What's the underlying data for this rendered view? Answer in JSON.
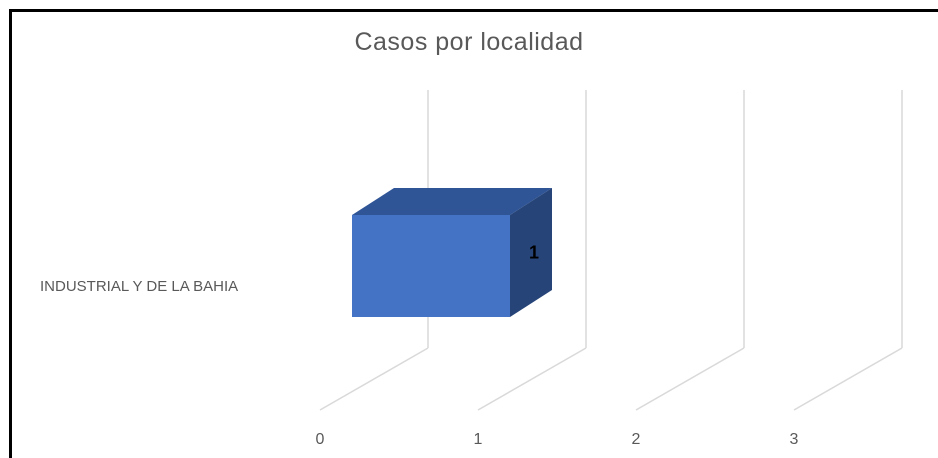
{
  "chart_data": {
    "type": "bar",
    "orientation": "horizontal",
    "style": "3d",
    "title": "Casos por localidad",
    "categories": [
      "INDUSTRIAL Y DE LA BAHIA"
    ],
    "values": [
      1
    ],
    "data_labels": [
      "1"
    ],
    "x_ticks": [
      "0",
      "1",
      "2",
      "3"
    ],
    "xlim": [
      0,
      3
    ],
    "grid": true,
    "legend": "none",
    "colors": {
      "bar_front": "#4472c4",
      "bar_top": "#2f5597",
      "bar_side": "#264478",
      "grid": "#d9d9d9",
      "text": "#595959"
    }
  }
}
